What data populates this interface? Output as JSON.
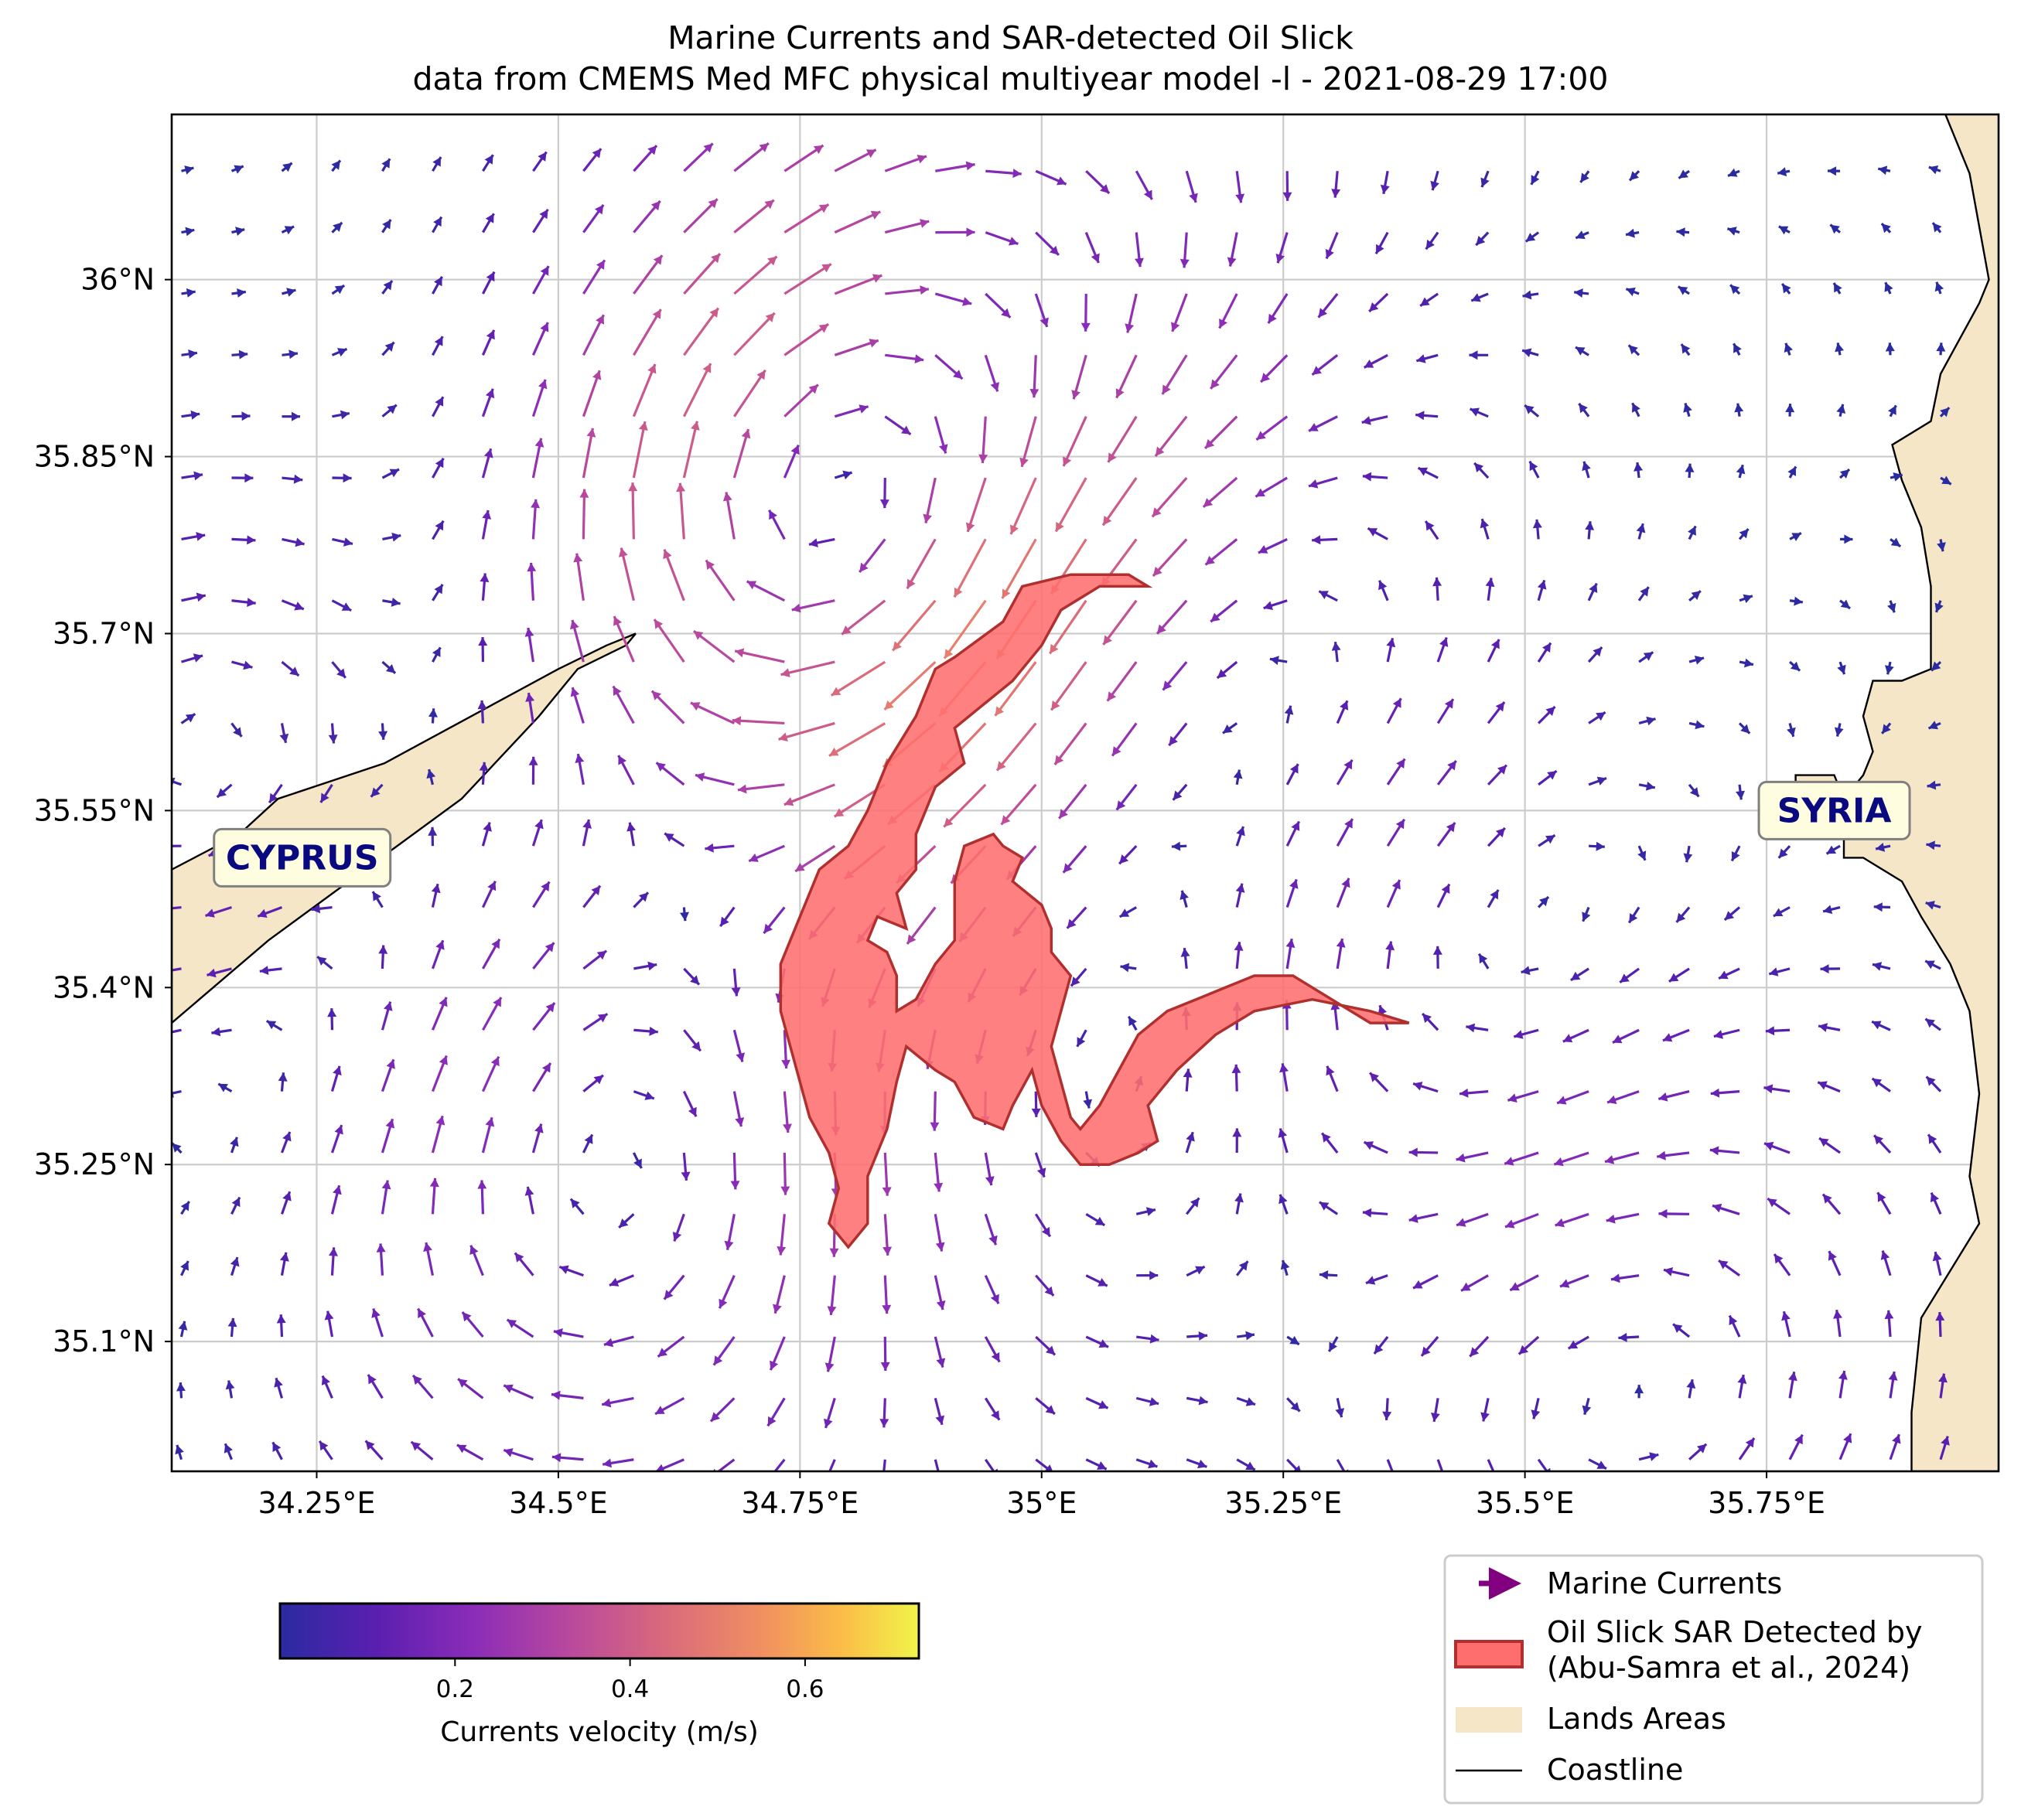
{
  "title": {
    "line1": "Marine Currents and SAR-detected Oil Slick",
    "line2": "data from CMEMS Med MFC physical multiyear model -l - 2021-08-29 17:00"
  },
  "map": {
    "lon_range": [
      34.1,
      35.99
    ],
    "lat_range": [
      34.99,
      36.14
    ],
    "lon_ticks": [
      {
        "value": 34.25,
        "label": "34.25°E"
      },
      {
        "value": 34.5,
        "label": "34.5°E"
      },
      {
        "value": 34.75,
        "label": "34.75°E"
      },
      {
        "value": 35.0,
        "label": "35°E"
      },
      {
        "value": 35.25,
        "label": "35.25°E"
      },
      {
        "value": 35.5,
        "label": "35.5°E"
      },
      {
        "value": 35.75,
        "label": "35.75°E"
      }
    ],
    "lat_ticks": [
      {
        "value": 36.0,
        "label": "36°N"
      },
      {
        "value": 35.85,
        "label": "35.85°N"
      },
      {
        "value": 35.7,
        "label": "35.7°N"
      },
      {
        "value": 35.55,
        "label": "35.55°N"
      },
      {
        "value": 35.4,
        "label": "35.4°N"
      },
      {
        "value": 35.25,
        "label": "35.25°N"
      },
      {
        "value": 35.1,
        "label": "35.1°N"
      }
    ],
    "grid": true,
    "place_labels": [
      {
        "name": "CYPRUS",
        "lon": 34.235,
        "lat": 35.51
      },
      {
        "name": "SYRIA",
        "lon": 35.82,
        "lat": 35.55
      }
    ],
    "colors": {
      "land": "#f5e6c8",
      "oil_fill": "#ff6e6e",
      "oil_edge": "#b03030",
      "coast": "#000000",
      "grid": "#cccccc"
    }
  },
  "legend": {
    "items": [
      {
        "label": "Marine Currents"
      },
      {
        "label": "Oil Slick SAR Detected by\n(Abu-Samra et al., 2024)"
      },
      {
        "label": "Lands Areas"
      },
      {
        "label": "Coastline"
      }
    ]
  },
  "colorbar": {
    "label": "Currents velocity (m/s)",
    "range": [
      0.0,
      0.73
    ],
    "ticks": [
      {
        "value": 0.2,
        "label": "0.2"
      },
      {
        "value": 0.4,
        "label": "0.4"
      },
      {
        "value": 0.6,
        "label": "0.6"
      }
    ],
    "colormap": "plasma"
  },
  "chart_data": {
    "type": "map-quiver",
    "title": "Marine Currents and SAR-detected Oil Slick",
    "subtitle": "data from CMEMS Med MFC physical multiyear model -l - 2021-08-29 17:00",
    "xlabel": "",
    "ylabel": "",
    "xlim": [
      34.1,
      35.99
    ],
    "ylim": [
      34.99,
      36.14
    ],
    "grid": true,
    "legend_position": "bottom-right",
    "colorbar_label": "Currents velocity (m/s)",
    "velocity_range": [
      0.0,
      0.73
    ],
    "features": {
      "cyprus_coast": [
        [
          34.1,
          35.37
        ],
        [
          34.2,
          35.44
        ],
        [
          34.3,
          35.5
        ],
        [
          34.4,
          35.56
        ],
        [
          34.48,
          35.63
        ],
        [
          34.52,
          35.67
        ],
        [
          34.57,
          35.69
        ],
        [
          34.58,
          35.7
        ],
        [
          34.55,
          35.69
        ],
        [
          34.5,
          35.67
        ],
        [
          34.41,
          35.63
        ],
        [
          34.32,
          35.59
        ],
        [
          34.21,
          35.56
        ],
        [
          34.17,
          35.53
        ],
        [
          34.1,
          35.5
        ]
      ],
      "syria_coast": [
        [
          35.93,
          36.15
        ],
        [
          35.96,
          36.09
        ],
        [
          35.98,
          36.0
        ],
        [
          35.97,
          35.98
        ],
        [
          35.93,
          35.92
        ],
        [
          35.92,
          35.88
        ],
        [
          35.88,
          35.86
        ],
        [
          35.89,
          35.83
        ],
        [
          35.91,
          35.79
        ],
        [
          35.92,
          35.74
        ],
        [
          35.92,
          35.67
        ],
        [
          35.89,
          35.66
        ],
        [
          35.86,
          35.66
        ],
        [
          35.85,
          35.63
        ],
        [
          35.86,
          35.6
        ],
        [
          35.85,
          35.58
        ],
        [
          35.83,
          35.56
        ],
        [
          35.82,
          35.58
        ],
        [
          35.78,
          35.58
        ],
        [
          35.78,
          35.57
        ],
        [
          35.8,
          35.55
        ],
        [
          35.83,
          35.55
        ],
        [
          35.83,
          35.51
        ],
        [
          35.85,
          35.51
        ],
        [
          35.89,
          35.49
        ],
        [
          35.91,
          35.46
        ],
        [
          35.94,
          35.42
        ],
        [
          35.96,
          35.38
        ],
        [
          35.97,
          35.31
        ],
        [
          35.96,
          35.24
        ],
        [
          35.97,
          35.2
        ],
        [
          35.94,
          35.16
        ],
        [
          35.91,
          35.12
        ],
        [
          35.9,
          35.04
        ],
        [
          35.9,
          34.99
        ]
      ],
      "oil_slick": [
        [
          34.91,
          35.68
        ],
        [
          34.96,
          35.71
        ],
        [
          34.98,
          35.74
        ],
        [
          35.03,
          35.75
        ],
        [
          35.09,
          35.75
        ],
        [
          35.11,
          35.74
        ],
        [
          35.06,
          35.74
        ],
        [
          35.02,
          35.72
        ],
        [
          35.0,
          35.69
        ],
        [
          34.97,
          35.66
        ],
        [
          34.94,
          35.64
        ],
        [
          34.91,
          35.62
        ],
        [
          34.92,
          35.59
        ],
        [
          34.89,
          35.57
        ],
        [
          34.88,
          35.55
        ],
        [
          34.87,
          35.53
        ],
        [
          34.87,
          35.5
        ],
        [
          34.85,
          35.48
        ],
        [
          34.86,
          35.45
        ],
        [
          34.83,
          35.46
        ],
        [
          34.82,
          35.44
        ],
        [
          34.84,
          35.43
        ],
        [
          34.85,
          35.41
        ],
        [
          34.85,
          35.38
        ],
        [
          34.87,
          35.39
        ],
        [
          34.89,
          35.42
        ],
        [
          34.91,
          35.44
        ],
        [
          34.91,
          35.49
        ],
        [
          34.92,
          35.52
        ],
        [
          34.95,
          35.53
        ],
        [
          34.96,
          35.52
        ],
        [
          34.98,
          35.51
        ],
        [
          34.97,
          35.49
        ],
        [
          35.0,
          35.47
        ],
        [
          35.01,
          35.45
        ],
        [
          35.01,
          35.43
        ],
        [
          35.03,
          35.41
        ],
        [
          35.02,
          35.38
        ],
        [
          35.01,
          35.35
        ],
        [
          35.02,
          35.32
        ],
        [
          35.03,
          35.29
        ],
        [
          35.04,
          35.28
        ],
        [
          35.06,
          35.3
        ],
        [
          35.08,
          35.33
        ],
        [
          35.1,
          35.36
        ],
        [
          35.13,
          35.38
        ],
        [
          35.16,
          35.39
        ],
        [
          35.19,
          35.4
        ],
        [
          35.22,
          35.41
        ],
        [
          35.26,
          35.41
        ],
        [
          35.3,
          35.39
        ],
        [
          35.34,
          35.37
        ],
        [
          35.38,
          35.37
        ],
        [
          35.34,
          35.38
        ],
        [
          35.28,
          35.39
        ],
        [
          35.22,
          35.38
        ],
        [
          35.18,
          35.36
        ],
        [
          35.14,
          35.33
        ],
        [
          35.11,
          35.3
        ],
        [
          35.12,
          35.27
        ],
        [
          35.1,
          35.26
        ],
        [
          35.07,
          35.25
        ],
        [
          35.04,
          35.25
        ],
        [
          35.02,
          35.27
        ],
        [
          35.0,
          35.3
        ],
        [
          34.99,
          35.33
        ],
        [
          34.97,
          35.3
        ],
        [
          34.96,
          35.28
        ],
        [
          34.93,
          35.29
        ],
        [
          34.91,
          35.32
        ],
        [
          34.89,
          35.33
        ],
        [
          34.86,
          35.35
        ],
        [
          34.85,
          35.32
        ],
        [
          34.84,
          35.28
        ],
        [
          34.82,
          35.24
        ],
        [
          34.82,
          35.2
        ],
        [
          34.8,
          35.18
        ],
        [
          34.78,
          35.2
        ],
        [
          34.79,
          35.23
        ],
        [
          34.78,
          35.26
        ],
        [
          34.76,
          35.29
        ],
        [
          34.75,
          35.32
        ],
        [
          34.74,
          35.35
        ],
        [
          34.73,
          35.38
        ],
        [
          34.73,
          35.42
        ],
        [
          34.75,
          35.46
        ],
        [
          34.77,
          35.5
        ],
        [
          34.8,
          35.52
        ],
        [
          34.82,
          35.55
        ],
        [
          34.84,
          35.59
        ],
        [
          34.87,
          35.63
        ],
        [
          34.89,
          35.67
        ]
      ],
      "current_field_centers": [
        [
          34.15,
          35.56
        ],
        [
          34.26,
          35.41
        ],
        [
          34.55,
          35.25
        ],
        [
          34.76,
          35.78
        ],
        [
          35.0,
          35.98
        ],
        [
          35.05,
          35.3
        ],
        [
          35.2,
          35.72
        ],
        [
          35.48,
          35.33
        ],
        [
          35.58,
          35.12
        ]
      ]
    }
  }
}
